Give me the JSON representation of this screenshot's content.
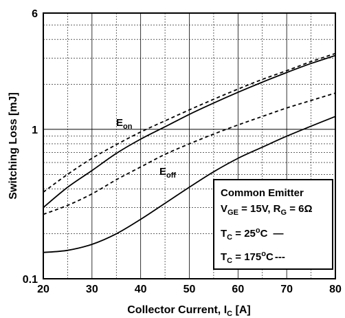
{
  "chart_data": {
    "type": "line",
    "xlabel": "Collector Current, I",
    "xlabel_sub": "C",
    "xlabel_unit": " [A]",
    "ylabel": "Switching Loss [mJ]",
    "xlim": [
      20,
      80
    ],
    "ylim": [
      0.1,
      6
    ],
    "yscale": "log",
    "grid": true,
    "x_ticks": [
      "20",
      "30",
      "40",
      "50",
      "60",
      "70",
      "80"
    ],
    "y_ticks": [
      "0.1",
      "1",
      "6"
    ],
    "series": [
      {
        "name": "E_on",
        "condition": "T_C = 25°C",
        "style": "solid",
        "x": [
          20,
          25,
          30,
          35,
          40,
          45,
          50,
          55,
          60,
          65,
          70,
          75,
          80
        ],
        "y": [
          0.3,
          0.41,
          0.53,
          0.69,
          0.86,
          1.04,
          1.26,
          1.5,
          1.77,
          2.07,
          2.4,
          2.76,
          3.12
        ]
      },
      {
        "name": "E_on",
        "condition": "T_C = 175°C",
        "style": "dashed",
        "x": [
          20,
          25,
          30,
          35,
          40,
          45,
          50,
          55,
          60,
          65,
          70,
          75,
          80
        ],
        "y": [
          0.38,
          0.5,
          0.64,
          0.79,
          0.96,
          1.14,
          1.35,
          1.59,
          1.86,
          2.16,
          2.47,
          2.84,
          3.22
        ]
      },
      {
        "name": "E_off",
        "condition": "T_C = 25°C",
        "style": "solid",
        "x": [
          20,
          25,
          30,
          35,
          40,
          45,
          50,
          55,
          60,
          65,
          70,
          75,
          80
        ],
        "y": [
          0.15,
          0.155,
          0.17,
          0.2,
          0.25,
          0.32,
          0.41,
          0.52,
          0.64,
          0.76,
          0.9,
          1.05,
          1.22
        ]
      },
      {
        "name": "E_off",
        "condition": "T_C = 175°C",
        "style": "dashed",
        "x": [
          20,
          25,
          30,
          35,
          40,
          45,
          50,
          55,
          60,
          65,
          70,
          75,
          80
        ],
        "y": [
          0.27,
          0.31,
          0.37,
          0.46,
          0.56,
          0.68,
          0.8,
          0.93,
          1.07,
          1.22,
          1.39,
          1.56,
          1.75
        ]
      }
    ],
    "annotations": {
      "eon": {
        "main": "E",
        "sub": "on"
      },
      "eoff": {
        "main": "E",
        "sub": "off"
      }
    },
    "legend": {
      "title": "Common Emitter",
      "line2_a": "V",
      "line2_a_sub": "GE",
      "line2_b": " = 15V, R",
      "line2_b_sub": "G",
      "line2_c": " = 6Ω",
      "tc": "T",
      "tc_sub": "C",
      "tc25": " = 25",
      "tc175": " = 175",
      "deg_sup": "o",
      "unit": "C",
      "solid_marker": "—",
      "dashed_marker": "---",
      "position": "bottom-right"
    }
  }
}
